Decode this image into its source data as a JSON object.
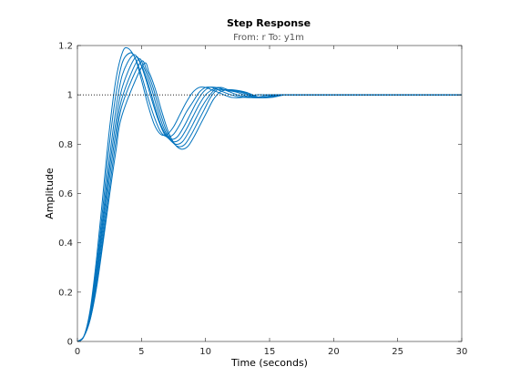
{
  "chart_data": {
    "type": "line",
    "title": "Step Response",
    "subtitle": "From: r  To: y1m",
    "xlabel": "Time (seconds)",
    "ylabel": "Amplitude",
    "xlim": [
      0,
      30
    ],
    "ylim": [
      0,
      1.2
    ],
    "xticks": [
      0,
      5,
      10,
      15,
      20,
      25,
      30
    ],
    "yticks": [
      0,
      0.2,
      0.4,
      0.6,
      0.8,
      1,
      1.2
    ],
    "xtick_labels": [
      "0",
      "5",
      "10",
      "15",
      "20",
      "25",
      "30"
    ],
    "ytick_labels": [
      "0",
      "0.2",
      "0.4",
      "0.6",
      "0.8",
      "1",
      "1.2"
    ],
    "reference_line": {
      "y": 1,
      "style": "dotted",
      "color": "#000000"
    },
    "grid": false,
    "series_color": "#0072BD",
    "series_model": "second-order underdamped step response; each series is a sampled trajectory",
    "series": [
      {
        "x": [
          0,
          0.5,
          1,
          1.5,
          2,
          2.5,
          3,
          3.5,
          3.9,
          4.5,
          5,
          5.5,
          6,
          6.5,
          7,
          7.5,
          8,
          8.5,
          9,
          9.5,
          10,
          10.5,
          11,
          12,
          13,
          14,
          15,
          16,
          18,
          20,
          22,
          25,
          30
        ],
        "values": [
          0,
          0.02,
          0.13,
          0.34,
          0.6,
          0.86,
          1.06,
          1.17,
          1.19,
          1.15,
          1.06,
          0.96,
          0.88,
          0.84,
          0.84,
          0.87,
          0.92,
          0.97,
          1.01,
          1.03,
          1.03,
          1.02,
          1.01,
          0.99,
          0.99,
          1.0,
          1.0,
          1.0,
          1.0,
          1.0,
          1.0,
          1.0,
          1.0
        ]
      },
      {
        "x": [
          0,
          0.5,
          1,
          1.5,
          2,
          2.5,
          3,
          3.5,
          4.1,
          4.5,
          5,
          5.5,
          6,
          6.5,
          7,
          7.5,
          8,
          8.5,
          9,
          9.5,
          10,
          10.5,
          11,
          12,
          13,
          14,
          15,
          16,
          18,
          20,
          22,
          25,
          30
        ],
        "values": [
          0,
          0.02,
          0.12,
          0.31,
          0.55,
          0.8,
          1.0,
          1.13,
          1.17,
          1.15,
          1.08,
          0.99,
          0.91,
          0.85,
          0.83,
          0.84,
          0.88,
          0.93,
          0.97,
          1.01,
          1.03,
          1.03,
          1.02,
          1.0,
          0.99,
          0.99,
          1.0,
          1.0,
          1.0,
          1.0,
          1.0,
          1.0,
          1.0
        ]
      },
      {
        "x": [
          0,
          0.5,
          1,
          1.5,
          2,
          2.5,
          3,
          3.5,
          4.3,
          4.8,
          5.3,
          5.8,
          6.3,
          6.8,
          7.3,
          7.8,
          8.3,
          8.8,
          9.3,
          9.8,
          10.3,
          10.8,
          11.5,
          12.5,
          13.5,
          14.5,
          15.5,
          16.5,
          18,
          20,
          22,
          25,
          30
        ],
        "values": [
          0,
          0.02,
          0.11,
          0.29,
          0.51,
          0.74,
          0.94,
          1.08,
          1.16,
          1.14,
          1.07,
          0.98,
          0.9,
          0.84,
          0.82,
          0.83,
          0.87,
          0.92,
          0.97,
          1.01,
          1.03,
          1.03,
          1.02,
          1.0,
          0.99,
          0.99,
          1.0,
          1.0,
          1.0,
          1.0,
          1.0,
          1.0,
          1.0
        ]
      },
      {
        "x": [
          0,
          0.5,
          1,
          1.5,
          2,
          2.5,
          3,
          3.5,
          4.5,
          5,
          5.5,
          6,
          6.5,
          7,
          7.5,
          8,
          8.5,
          9,
          9.5,
          10,
          10.5,
          11,
          11.5,
          12.5,
          13.5,
          14.5,
          15.5,
          16.5,
          18,
          20,
          22,
          25,
          30
        ],
        "values": [
          0,
          0.02,
          0.1,
          0.27,
          0.48,
          0.7,
          0.89,
          1.03,
          1.15,
          1.12,
          1.05,
          0.96,
          0.88,
          0.83,
          0.81,
          0.82,
          0.86,
          0.91,
          0.96,
          1.0,
          1.02,
          1.03,
          1.02,
          1.01,
          0.99,
          0.99,
          1.0,
          1.0,
          1.0,
          1.0,
          1.0,
          1.0,
          1.0
        ]
      },
      {
        "x": [
          0,
          0.5,
          1,
          1.5,
          2,
          2.5,
          3,
          3.5,
          4.7,
          5.2,
          5.7,
          6.2,
          6.7,
          7.2,
          7.7,
          8.2,
          8.7,
          9.2,
          9.7,
          10.2,
          10.7,
          11.2,
          11.8,
          12.8,
          13.8,
          14.8,
          15.8,
          16.8,
          18,
          20,
          22,
          25,
          30
        ],
        "values": [
          0,
          0.02,
          0.1,
          0.25,
          0.45,
          0.66,
          0.85,
          0.99,
          1.14,
          1.11,
          1.04,
          0.95,
          0.87,
          0.82,
          0.8,
          0.81,
          0.85,
          0.9,
          0.95,
          0.99,
          1.02,
          1.03,
          1.02,
          1.01,
          0.99,
          0.99,
          1.0,
          1.0,
          1.0,
          1.0,
          1.0,
          1.0,
          1.0
        ]
      },
      {
        "x": [
          0,
          0.5,
          1,
          1.5,
          2,
          2.5,
          3,
          3.5,
          4.9,
          5.4,
          5.9,
          6.4,
          6.9,
          7.4,
          7.9,
          8.4,
          8.9,
          9.4,
          9.9,
          10.4,
          10.9,
          11.4,
          12,
          13,
          14,
          15,
          16,
          17,
          18,
          20,
          22,
          25,
          30
        ],
        "values": [
          0,
          0.02,
          0.09,
          0.23,
          0.42,
          0.62,
          0.81,
          0.96,
          1.13,
          1.1,
          1.03,
          0.94,
          0.86,
          0.81,
          0.79,
          0.8,
          0.84,
          0.89,
          0.94,
          0.99,
          1.02,
          1.02,
          1.02,
          1.01,
          0.99,
          0.99,
          1.0,
          1.0,
          1.0,
          1.0,
          1.0,
          1.0,
          1.0
        ]
      },
      {
        "x": [
          0,
          0.5,
          1,
          1.5,
          2,
          2.5,
          3,
          3.5,
          5.1,
          5.6,
          6.1,
          6.6,
          7.1,
          7.6,
          8.1,
          8.6,
          9.1,
          9.6,
          10.1,
          10.6,
          11.1,
          11.6,
          12.2,
          13.2,
          14.2,
          15.2,
          16.2,
          17.2,
          18.5,
          20,
          22,
          25,
          30
        ],
        "values": [
          0,
          0.02,
          0.09,
          0.22,
          0.4,
          0.59,
          0.77,
          0.92,
          1.12,
          1.09,
          1.02,
          0.93,
          0.85,
          0.8,
          0.78,
          0.79,
          0.83,
          0.88,
          0.93,
          0.98,
          1.01,
          1.02,
          1.02,
          1.01,
          0.99,
          0.99,
          1.0,
          1.0,
          1.0,
          1.0,
          1.0,
          1.0,
          1.0
        ]
      }
    ]
  }
}
